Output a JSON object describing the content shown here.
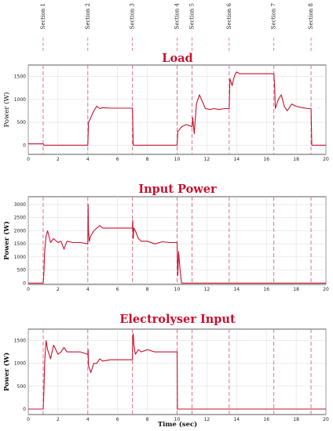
{
  "section_labels": [
    "Section 1",
    "Section 2",
    "Section 3",
    "Section 4",
    "Section 5",
    "Section 6",
    "Section 7",
    "Section 8"
  ],
  "colors": {
    "line": "#c8102e",
    "section_line": "#e0607a",
    "grid": "#d9d9d9",
    "axis": "#333333"
  },
  "chart_data": [
    {
      "type": "line",
      "title": "Load",
      "xlabel": "",
      "ylabel": "Power (W)",
      "xlim": [
        0,
        20
      ],
      "ylim": [
        -200,
        1750
      ],
      "xticks": [
        0,
        2,
        4,
        6,
        8,
        10,
        12,
        14,
        16,
        18,
        20
      ],
      "yticks": [
        0,
        500,
        1000,
        1500
      ],
      "section_lines": [
        1,
        4,
        7,
        10,
        11,
        13.5,
        16.5,
        19
      ],
      "grid": true,
      "series": [
        {
          "name": "",
          "x": [
            0,
            0.5,
            1,
            1.05,
            4,
            4.05,
            4.2,
            4.4,
            4.6,
            4.8,
            5,
            5.5,
            7,
            7.05,
            10,
            10.05,
            10.3,
            10.6,
            10.9,
            11,
            11.05,
            11.15,
            11.3,
            11.5,
            11.7,
            11.9,
            12.2,
            12.5,
            12.8,
            13.2,
            13.5,
            13.55,
            13.6,
            13.7,
            13.8,
            13.9,
            14,
            14.2,
            16.5,
            16.55,
            16.6,
            16.8,
            17,
            17.2,
            17.4,
            17.7,
            18,
            18.4,
            18.8,
            19,
            19.05,
            20
          ],
          "y": [
            30,
            30,
            30,
            0,
            0,
            500,
            600,
            750,
            850,
            800,
            820,
            810,
            810,
            0,
            0,
            300,
            400,
            450,
            420,
            400,
            600,
            250,
            900,
            1100,
            950,
            800,
            780,
            800,
            780,
            800,
            800,
            1450,
            1400,
            1300,
            1450,
            1550,
            1600,
            1560,
            1560,
            1300,
            800,
            1000,
            1100,
            850,
            750,
            900,
            850,
            820,
            800,
            800,
            0,
            0
          ]
        }
      ]
    },
    {
      "type": "line",
      "title": "Input Power",
      "xlabel": "",
      "ylabel": "Power (W)",
      "xlim": [
        0,
        20
      ],
      "ylim": [
        -50,
        3300
      ],
      "xticks": [
        0,
        2,
        4,
        6,
        8,
        10,
        12,
        14,
        16,
        18,
        20
      ],
      "yticks": [
        0,
        500,
        1000,
        1500,
        2000,
        2500,
        3000
      ],
      "section_lines": [
        1,
        4,
        7,
        10,
        11,
        13.5,
        16.5,
        19
      ],
      "grid": true,
      "series": [
        {
          "name": "",
          "x": [
            0,
            1,
            1.05,
            1.1,
            1.2,
            1.3,
            1.5,
            1.7,
            2,
            2.2,
            2.4,
            2.6,
            3,
            3.5,
            4,
            4.02,
            4.05,
            4.1,
            4.2,
            4.4,
            4.6,
            4.8,
            5,
            5.5,
            6,
            7,
            7.02,
            7.05,
            7.1,
            7.2,
            7.4,
            7.6,
            8,
            8.5,
            9,
            9.5,
            10,
            10.02,
            10.05,
            10.1,
            10.2,
            10.3,
            20
          ],
          "y": [
            0,
            0,
            400,
            1200,
            1800,
            2000,
            1550,
            1700,
            1550,
            1600,
            1300,
            1600,
            1550,
            1550,
            1500,
            3000,
            2000,
            1600,
            1800,
            2000,
            2100,
            2200,
            2100,
            2100,
            2100,
            2100,
            2400,
            1700,
            2100,
            2000,
            1700,
            1600,
            1600,
            1500,
            1580,
            1550,
            1550,
            800,
            300,
            1200,
            500,
            0,
            0
          ]
        }
      ]
    },
    {
      "type": "line",
      "title": "Electrolyser Input",
      "xlabel": "Time (sec)",
      "ylabel": "Power (W)",
      "xlim": [
        0,
        20
      ],
      "ylim": [
        -120,
        1750
      ],
      "xticks": [
        0,
        2,
        4,
        6,
        8,
        10,
        12,
        14,
        16,
        18,
        20
      ],
      "yticks": [
        0,
        500,
        1000,
        1500
      ],
      "section_lines": [
        1,
        4,
        7,
        10,
        11,
        13.5,
        16.5,
        19
      ],
      "grid": true,
      "series": [
        {
          "name": "",
          "x": [
            0,
            1,
            1.05,
            1.1,
            1.2,
            1.3,
            1.5,
            1.7,
            2,
            2.2,
            2.4,
            2.6,
            3,
            3.5,
            4,
            4.02,
            4.05,
            4.2,
            4.4,
            4.6,
            4.8,
            5,
            5.5,
            6,
            7,
            7.02,
            7.05,
            7.1,
            7.2,
            7.4,
            7.6,
            8,
            8.5,
            9,
            10,
            10.02,
            20
          ],
          "y": [
            0,
            0,
            400,
            1000,
            1500,
            1300,
            1100,
            1400,
            1200,
            1250,
            1350,
            1250,
            1250,
            1250,
            1200,
            1300,
            950,
            800,
            1000,
            1000,
            1100,
            1050,
            1080,
            1080,
            1080,
            1600,
            1650,
            1400,
            1200,
            1300,
            1250,
            1300,
            1250,
            1250,
            1250,
            0,
            0
          ]
        }
      ]
    }
  ]
}
